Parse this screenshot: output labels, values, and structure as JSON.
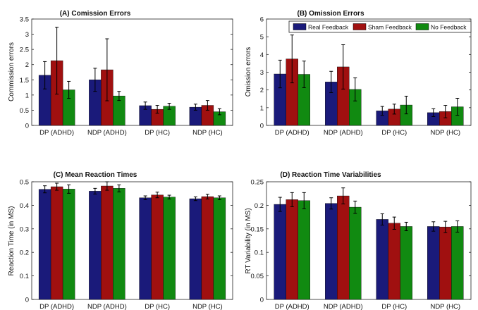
{
  "figure": {
    "colors": {
      "Real Feedback": "#1a1a7a",
      "Sham Feedback": "#a01010",
      "No Feedback": "#118a11"
    },
    "legend": {
      "entries": [
        "Real Feedback",
        "Sham Feedback",
        "No Feedback"
      ],
      "placement": "top-right of panel B"
    }
  },
  "chart_data": [
    {
      "type": "bar",
      "title": "(A) Comission Errors",
      "xlabel": "",
      "ylabel": "Commission errors",
      "ylim": [
        0,
        3.5
      ],
      "yticks": [
        "0",
        "0.5",
        "1",
        "1.5",
        "2",
        "2.5",
        "3",
        "3.5"
      ],
      "categories": [
        "DP (ADHD)",
        "NDP (ADHD)",
        "DP (HC)",
        "NDP (HC)"
      ],
      "series": [
        {
          "name": "Real Feedback",
          "values": [
            1.65,
            1.5,
            0.65,
            0.6
          ],
          "errors": [
            0.45,
            0.38,
            0.12,
            0.1
          ]
        },
        {
          "name": "Sham Feedback",
          "values": [
            2.13,
            1.83,
            0.53,
            0.66
          ],
          "errors": [
            1.1,
            1.02,
            0.13,
            0.16
          ]
        },
        {
          "name": "No Feedback",
          "values": [
            1.17,
            0.97,
            0.63,
            0.45
          ],
          "errors": [
            0.28,
            0.15,
            0.1,
            0.1
          ]
        }
      ]
    },
    {
      "type": "bar",
      "title": "(B) Omission Errors",
      "xlabel": "",
      "ylabel": "Omission errors",
      "ylim": [
        0,
        6
      ],
      "yticks": [
        "0",
        "1",
        "2",
        "3",
        "4",
        "5",
        "6"
      ],
      "categories": [
        "DP (ADHD)",
        "NDP (ADHD)",
        "DP (HC)",
        "NDP (HC)"
      ],
      "series": [
        {
          "name": "Real Feedback",
          "values": [
            2.9,
            2.45,
            0.82,
            0.72
          ],
          "errors": [
            0.78,
            0.6,
            0.25,
            0.22
          ]
        },
        {
          "name": "Sham Feedback",
          "values": [
            3.75,
            3.3,
            0.92,
            0.78
          ],
          "errors": [
            1.35,
            1.25,
            0.28,
            0.35
          ]
        },
        {
          "name": "No Feedback",
          "values": [
            2.88,
            2.03,
            1.15,
            1.05
          ],
          "errors": [
            0.75,
            0.65,
            0.5,
            0.48
          ]
        }
      ]
    },
    {
      "type": "bar",
      "title": "(C) Mean Reaction Times",
      "xlabel": "",
      "ylabel": "Reaction Time (in MS)",
      "ylim": [
        0,
        0.5
      ],
      "yticks": [
        "0",
        "0.1",
        "0.2",
        "0.3",
        "0.4",
        "0.5"
      ],
      "categories": [
        "DP (ADHD)",
        "NDP (ADHD)",
        "DP (HC)",
        "NDP (HC)"
      ],
      "series": [
        {
          "name": "Real Feedback",
          "values": [
            0.468,
            0.46,
            0.432,
            0.428
          ],
          "errors": [
            0.015,
            0.012,
            0.008,
            0.008
          ]
        },
        {
          "name": "Sham Feedback",
          "values": [
            0.479,
            0.482,
            0.444,
            0.437
          ],
          "errors": [
            0.015,
            0.018,
            0.012,
            0.01
          ]
        },
        {
          "name": "No Feedback",
          "values": [
            0.469,
            0.472,
            0.435,
            0.432
          ],
          "errors": [
            0.018,
            0.015,
            0.008,
            0.008
          ]
        }
      ]
    },
    {
      "type": "bar",
      "title": "(D) Reaction Time Variabilities",
      "xlabel": "",
      "ylabel": "RT Variability (in MS)",
      "ylim": [
        0,
        0.25
      ],
      "yticks": [
        "0",
        "0.05",
        "0.1",
        "0.15",
        "0.2",
        "0.25"
      ],
      "categories": [
        "DP (ADHD)",
        "NDP (ADHD)",
        "DP (HC)",
        "NDP (HC)"
      ],
      "series": [
        {
          "name": "Real Feedback",
          "values": [
            0.202,
            0.204,
            0.17,
            0.155
          ],
          "errors": [
            0.015,
            0.012,
            0.012,
            0.01
          ]
        },
        {
          "name": "Sham Feedback",
          "values": [
            0.212,
            0.22,
            0.162,
            0.154
          ],
          "errors": [
            0.015,
            0.017,
            0.013,
            0.012
          ]
        },
        {
          "name": "No Feedback",
          "values": [
            0.21,
            0.196,
            0.155,
            0.155
          ],
          "errors": [
            0.017,
            0.013,
            0.009,
            0.012
          ]
        }
      ]
    }
  ]
}
